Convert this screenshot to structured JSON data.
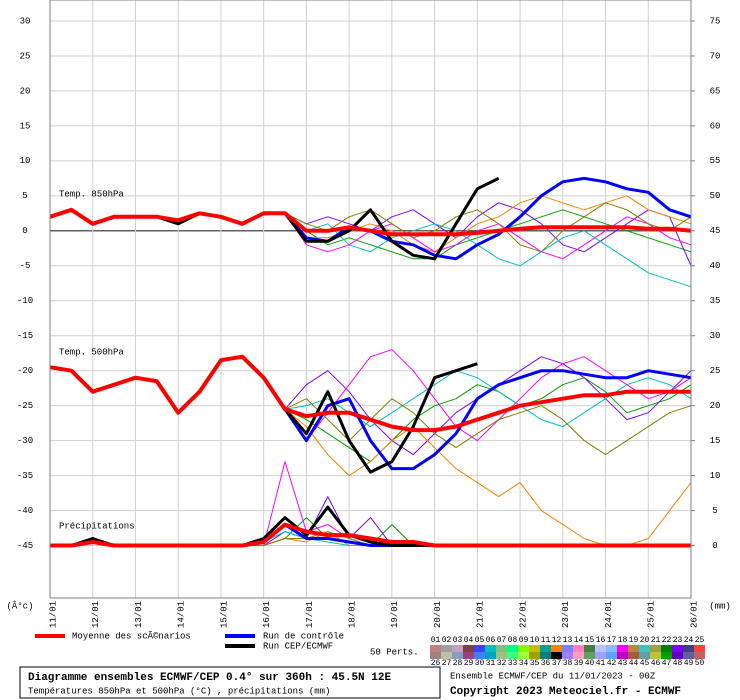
{
  "chart_data": {
    "type": "line",
    "xticks": [
      "11/01",
      "12/01",
      "13/01",
      "14/01",
      "15/01",
      "16/01",
      "17/01",
      "18/01",
      "19/01",
      "20/01",
      "21/01",
      "22/01",
      "23/01",
      "24/01",
      "25/01",
      "26/01"
    ],
    "ylim": [
      -52.5,
      33
    ],
    "yticks": [
      30,
      25,
      20,
      15,
      10,
      5,
      0,
      -5,
      -10,
      -15,
      -20,
      -25,
      -30,
      -35,
      -40,
      -45
    ],
    "y2lim": [
      -7.5,
      78
    ],
    "y2ticks": [
      75,
      70,
      65,
      60,
      55,
      50,
      45,
      40,
      35,
      30,
      25,
      20,
      15,
      10,
      5,
      0
    ],
    "y_unit_label": "(Â°c)",
    "y2_unit_label": "(mm)",
    "grid": true,
    "annotations": [
      "Temp. 850hPa",
      "Temp. 500hPa",
      "Précipitations"
    ],
    "series": [
      {
        "name": "Moyenne des scÃ©narios",
        "color": "#ff0000",
        "t850": [
          2,
          3,
          1,
          2,
          2,
          2,
          1.5,
          2.5,
          2,
          1,
          2.5,
          2.5,
          0,
          0,
          0.5,
          0,
          -0.5,
          -0.5,
          -0.5,
          -0.5,
          -0.3,
          0,
          0.3,
          0.5,
          0.5,
          0.5,
          0.5,
          0.5,
          0.3,
          0.3,
          0
        ],
        "t500": [
          -19.5,
          -20,
          -23,
          -22,
          -21,
          -21.5,
          -26,
          -23,
          -18.5,
          -18,
          -21,
          -25.5,
          -26.5,
          -26,
          -26,
          -27,
          -28,
          -28.5,
          -28.5,
          -28,
          -27,
          -26,
          -25,
          -24.5,
          -24,
          -23.5,
          -23.5,
          -23,
          -23,
          -23,
          -23
        ],
        "precip": [
          0,
          0,
          0.5,
          0,
          0,
          0,
          0,
          0,
          0,
          0,
          0.5,
          3,
          2,
          1.5,
          1.5,
          1,
          0.5,
          0.5,
          0,
          0,
          0,
          0,
          0,
          0,
          0,
          0,
          0,
          0,
          0,
          0,
          0
        ]
      },
      {
        "name": "Run de contrôle",
        "color": "#0000ff",
        "t850": [
          2,
          3,
          1,
          2,
          2,
          2,
          1.5,
          2.5,
          2,
          1,
          2.5,
          2.5,
          -1,
          -1.5,
          0.5,
          0,
          -1.5,
          -2,
          -3.5,
          -4,
          -2,
          -0.5,
          2,
          5,
          7,
          7.5,
          7,
          6,
          5.5,
          3,
          2
        ],
        "t500": [
          -19.5,
          -20,
          -23,
          -22,
          -21,
          -21.5,
          -26,
          -23,
          -18.5,
          -18,
          -21,
          -25.5,
          -30,
          -25,
          -24,
          -30,
          -34,
          -34,
          -32,
          -29,
          -24,
          -22,
          -21,
          -20,
          -20,
          -20.5,
          -21,
          -21,
          -20,
          -20.5,
          -21
        ],
        "precip": [
          0,
          0,
          0.5,
          0,
          0,
          0,
          0,
          0,
          0,
          0,
          0.5,
          3,
          1,
          1,
          0.5,
          0,
          0,
          0,
          0,
          0,
          0,
          0,
          0,
          0,
          0,
          0,
          0,
          0,
          0,
          0,
          0
        ]
      },
      {
        "name": "Run CEP/ECMWF",
        "color": "#000000",
        "t850": [
          2,
          3,
          1,
          2,
          2,
          2,
          1,
          2.5,
          2,
          1,
          2.5,
          2.5,
          -1.5,
          -1.5,
          0,
          3,
          -1.5,
          -3.5,
          -4,
          1,
          6,
          7.5,
          null,
          null,
          null,
          null,
          null,
          null,
          null,
          null,
          null
        ],
        "t500": [
          -19.5,
          -20,
          -23,
          -22,
          -21,
          -21.5,
          -26,
          -23,
          -18.5,
          -18,
          -21,
          -25.5,
          -29,
          -23,
          -30,
          -34.5,
          -33,
          -28,
          -21,
          -20,
          -19,
          null,
          null,
          null,
          null,
          null,
          null,
          null,
          null,
          null,
          null
        ],
        "precip": [
          0,
          0,
          1,
          0,
          0,
          0,
          0,
          0,
          0,
          0,
          1,
          4,
          1.5,
          5.5,
          1.5,
          0.5,
          0,
          0,
          0,
          0,
          0,
          null,
          null,
          null,
          null,
          null,
          null,
          null,
          null,
          null,
          null
        ]
      }
    ],
    "perturbations": [
      {
        "color": "#00a000",
        "t850": [
          2,
          3,
          1,
          2,
          2,
          2,
          1.5,
          2.5,
          2,
          1,
          2.5,
          2.5,
          0,
          -2,
          -1,
          -2,
          -3,
          -4,
          -4,
          -2,
          -1,
          0,
          1,
          2,
          3,
          2,
          1,
          0,
          -1,
          -2,
          -3
        ],
        "t500": [
          -19.5,
          -20,
          -23,
          -22,
          -21,
          -21.5,
          -26,
          -23,
          -18.5,
          -18,
          -21,
          -25.5,
          -27,
          -29,
          -31,
          -33,
          -30,
          -27,
          -25,
          -24,
          -22,
          -23,
          -25,
          -24,
          -22,
          -21,
          -23,
          -26,
          -25,
          -24,
          -22
        ],
        "precip": [
          0,
          0,
          0.5,
          0,
          0,
          0,
          0,
          0,
          0,
          0,
          0,
          1,
          4,
          1,
          0.5,
          0,
          3,
          0,
          0,
          0,
          0,
          0,
          0,
          0,
          0,
          0,
          0,
          0,
          0,
          0,
          0
        ]
      },
      {
        "color": "#8000ff",
        "t850": [
          2,
          3,
          1,
          2,
          2,
          2,
          1.5,
          2.5,
          2,
          1,
          2.5,
          2.5,
          1,
          2,
          1,
          0,
          2,
          3,
          1,
          -1,
          2,
          4,
          3,
          1,
          -2,
          -3,
          -1,
          1,
          3,
          2,
          -5
        ],
        "t500": [
          -19.5,
          -20,
          -23,
          -22,
          -21,
          -21.5,
          -26,
          -23,
          -18.5,
          -18,
          -21,
          -25.5,
          -22,
          -20,
          -23,
          -27,
          -30,
          -32,
          -29,
          -26,
          -24,
          -22,
          -20,
          -18,
          -19,
          -21,
          -24,
          -27,
          -26,
          -23,
          -20
        ],
        "precip": [
          0,
          0,
          0.5,
          0,
          0,
          0,
          0,
          0,
          0,
          0,
          0,
          2,
          1,
          7,
          1,
          4,
          0,
          0,
          0,
          0,
          0,
          0,
          0,
          0,
          0,
          0,
          0,
          0,
          0,
          0,
          0
        ]
      },
      {
        "color": "#ff8000",
        "t850": [
          2,
          3,
          1,
          2,
          2,
          2,
          1.5,
          2.5,
          2,
          1,
          2.5,
          2.5,
          -1,
          -1,
          0,
          1,
          0,
          -2,
          -3,
          -1,
          1,
          2,
          4,
          5,
          4,
          3,
          4,
          5,
          3,
          2,
          1
        ],
        "t500": [
          -19.5,
          -20,
          -23,
          -22,
          -21,
          -21.5,
          -26,
          -23,
          -18.5,
          -18,
          -21,
          -25.5,
          -28,
          -32,
          -35,
          -33,
          -30,
          -28,
          -31,
          -34,
          -36,
          -38,
          -36,
          -40,
          -42,
          -44,
          -45,
          -45,
          -44,
          -40,
          -36
        ],
        "precip": [
          0,
          0,
          0.5,
          0,
          0,
          0,
          0,
          0,
          0,
          0,
          0,
          1,
          0.5,
          2,
          0,
          0,
          0,
          0,
          0,
          0,
          0,
          0,
          0,
          0,
          0,
          0,
          0,
          0,
          0,
          0,
          0
        ]
      },
      {
        "color": "#00c0c0",
        "t850": [
          2,
          3,
          1,
          2,
          2,
          2,
          1.5,
          2.5,
          2,
          1,
          2.5,
          2.5,
          0,
          1,
          -2,
          -3,
          -1,
          0,
          1,
          0,
          -2,
          -4,
          -5,
          -3,
          -1,
          0,
          -2,
          -4,
          -6,
          -7,
          -8
        ],
        "t500": [
          -19.5,
          -20,
          -23,
          -22,
          -21,
          -21.5,
          -26,
          -23,
          -18.5,
          -18,
          -21,
          -25.5,
          -25,
          -24,
          -26,
          -28,
          -26,
          -24,
          -22,
          -20,
          -21,
          -23,
          -25,
          -27,
          -28,
          -26,
          -24,
          -22,
          -21,
          -22,
          -24
        ],
        "precip": [
          0,
          0,
          0.5,
          0,
          0,
          0,
          0,
          0,
          0,
          0,
          0.5,
          2,
          1,
          0.5,
          0,
          0,
          0,
          0,
          0,
          0,
          0,
          0,
          0,
          0,
          0,
          0,
          0,
          0,
          0,
          0,
          0
        ]
      },
      {
        "color": "#ff00ff",
        "t850": [
          2,
          3,
          1,
          2,
          2,
          2,
          1.5,
          2.5,
          2,
          1,
          2.5,
          2.5,
          -2,
          -3,
          -2,
          0,
          1,
          -1,
          -3,
          -2,
          0,
          1,
          -1,
          -3,
          -4,
          -2,
          0,
          2,
          1,
          -1,
          -2
        ],
        "t500": [
          -19.5,
          -20,
          -23,
          -22,
          -21,
          -21.5,
          -26,
          -23,
          -18.5,
          -18,
          -21,
          -25.5,
          -30,
          -26,
          -22,
          -18,
          -17,
          -20,
          -24,
          -28,
          -30,
          -27,
          -24,
          -21,
          -19,
          -18,
          -20,
          -22,
          -24,
          -23,
          -21
        ],
        "precip": [
          0,
          0,
          1,
          0,
          0,
          0,
          0,
          0,
          0,
          0,
          0,
          12,
          2,
          3,
          1,
          0,
          0,
          0,
          0,
          0,
          0,
          0,
          0,
          0,
          0,
          0,
          0,
          0,
          0,
          0,
          0
        ]
      },
      {
        "color": "#808000",
        "t850": [
          2,
          3,
          1,
          2,
          2,
          2,
          1.5,
          2.5,
          2,
          1,
          2.5,
          2.5,
          1,
          0,
          2,
          3,
          1,
          -1,
          0,
          2,
          3,
          1,
          -2,
          -3,
          0,
          2,
          4,
          3,
          1,
          0,
          2
        ],
        "t500": [
          -19.5,
          -20,
          -23,
          -22,
          -21,
          -21.5,
          -26,
          -23,
          -18.5,
          -18,
          -21,
          -25.5,
          -24,
          -27,
          -30,
          -27,
          -24,
          -26,
          -29,
          -31,
          -29,
          -27,
          -26,
          -25,
          -27,
          -30,
          -32,
          -30,
          -28,
          -26,
          -25
        ],
        "precip": [
          0,
          0,
          0.5,
          0,
          0,
          0,
          0,
          0,
          0,
          0,
          0,
          1,
          1,
          2,
          1,
          0,
          0,
          0,
          0,
          0,
          0,
          0,
          0,
          0,
          0,
          0,
          0,
          0,
          0,
          0,
          0
        ]
      }
    ],
    "members_label": "50 Perts.",
    "member_labels": [
      "01",
      "02",
      "03",
      "04",
      "05",
      "06",
      "07",
      "08",
      "09",
      "10",
      "11",
      "12",
      "13",
      "14",
      "15",
      "16",
      "17",
      "18",
      "19",
      "20",
      "21",
      "22",
      "23",
      "24",
      "25",
      "26",
      "27",
      "28",
      "29",
      "30",
      "31",
      "32",
      "33",
      "34",
      "35",
      "36",
      "37",
      "38",
      "39",
      "40",
      "41",
      "42",
      "43",
      "44",
      "45",
      "46",
      "47",
      "48",
      "49",
      "50"
    ],
    "member_colors": [
      "#c08080",
      "#a0a0a0",
      "#c0a0c0",
      "#804040",
      "#4040ff",
      "#00c0c0",
      "#80c080",
      "#00ff80",
      "#80ff00",
      "#c0c000",
      "#00a0a0",
      "#ff8000",
      "#8080ff",
      "#ff80c0",
      "#408040",
      "#c0c0ff",
      "#80c0ff",
      "#ff00ff",
      "#c08040",
      "#40c0c0",
      "#a0a040",
      "#008000",
      "#8000ff",
      "#404080",
      "#ff4040",
      "#a08080",
      "#c0c0a0",
      "#80a0c0",
      "#a04080",
      "#4080ff",
      "#00a0c0",
      "#a0c080",
      "#40ff80",
      "#a0ff40",
      "#a0a000",
      "#008080",
      "#ff a000",
      "#a080ff",
      "#ffa0c0",
      "#60a060",
      "#a0a0ff",
      "#60a0ff",
      "#c000c0",
      "#a06040",
      "#60a0a0",
      "#c0c040",
      "#00a000",
      "#6000c0",
      "#6060a0",
      "#c06060"
    ]
  },
  "footer": {
    "title": "Diagramme ensembles ECMWF/CEP 0.4° sur 360h : 45.5N 12E",
    "subtitle": "Températures 850hPa et 500hPa (°C) , précipitations (mm)",
    "run": "Ensemble ECMWF/CEP du 11/01/2023 - 00Z",
    "copyright": "Copyright 2023 Meteociel.fr - ECMWF"
  }
}
